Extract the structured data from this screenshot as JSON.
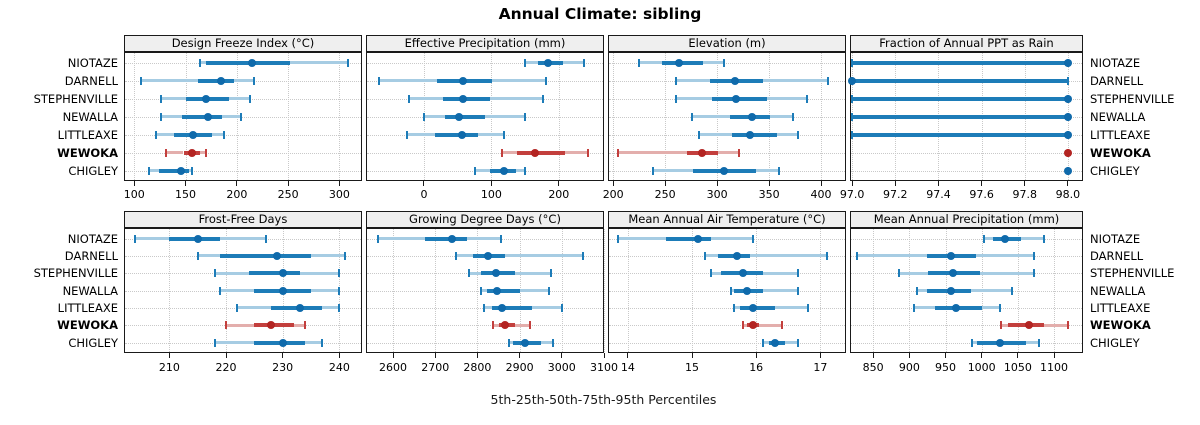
{
  "title": "Annual Climate: sibling",
  "axis_title": "5th-25th-50th-75th-95th Percentiles",
  "sites": [
    "NIOTAZE",
    "DARNELL",
    "STEPHENVILLE",
    "NEWALLA",
    "LITTLEAXE",
    "WEWOKA",
    "CHIGLEY"
  ],
  "highlight_site": "WEWOKA",
  "percentile_levels": [
    "5th",
    "25th",
    "50th",
    "75th",
    "95th"
  ],
  "colors": {
    "blue_dot": "#0f6aab",
    "blue_bar": "#1d7cb8",
    "blue_light": "#a6cce3",
    "red_dot": "#b32422",
    "red_bar": "#c33f3d",
    "red_light": "#e3aeac",
    "grid": "#c9c9c9",
    "border": "#1a1a1a",
    "header_bg": "#efefef"
  },
  "chart_data": [
    {
      "type": "dot-errorbar",
      "row": 0,
      "col": 0,
      "title": "Design Freeze Index (°C)",
      "xlim": [
        90,
        322
      ],
      "ticks": [
        100,
        150,
        200,
        250,
        300
      ],
      "tick_labels": [
        "100",
        "150",
        "200",
        "250",
        "300"
      ],
      "grid": true,
      "legend": "none",
      "series": [
        {
          "site": "NIOTAZE",
          "values": [
            164,
            170,
            215,
            252,
            308
          ]
        },
        {
          "site": "DARNELL",
          "values": [
            107,
            162,
            185,
            197,
            217
          ]
        },
        {
          "site": "STEPHENVILLE",
          "values": [
            126,
            150,
            170,
            192,
            213
          ]
        },
        {
          "site": "NEWALLA",
          "values": [
            126,
            147,
            172,
            186,
            204
          ]
        },
        {
          "site": "LITTLEAXE",
          "values": [
            121,
            139,
            157,
            176,
            187
          ]
        },
        {
          "site": "WEWOKA",
          "values": [
            131,
            148,
            156,
            164,
            170
          ]
        },
        {
          "site": "CHIGLEY",
          "values": [
            114,
            124,
            146,
            153,
            156
          ]
        }
      ]
    },
    {
      "type": "dot-errorbar",
      "row": 0,
      "col": 1,
      "title": "Effective Precipitation (mm)",
      "xlim": [
        -86,
        267
      ],
      "ticks": [
        0,
        100,
        200
      ],
      "tick_labels": [
        "0",
        "100",
        "200"
      ],
      "grid": true,
      "legend": "none",
      "series": [
        {
          "site": "NIOTAZE",
          "values": [
            150,
            169,
            184,
            206,
            237
          ]
        },
        {
          "site": "DARNELL",
          "values": [
            -67,
            19,
            58,
            101,
            181
          ]
        },
        {
          "site": "STEPHENVILLE",
          "values": [
            -22,
            28,
            58,
            98,
            176
          ]
        },
        {
          "site": "NEWALLA",
          "values": [
            0,
            31,
            52,
            90,
            150
          ]
        },
        {
          "site": "LITTLEAXE",
          "values": [
            -25,
            16,
            56,
            80,
            119
          ]
        },
        {
          "site": "WEWOKA",
          "values": [
            116,
            138,
            164,
            209,
            243
          ]
        },
        {
          "site": "CHIGLEY",
          "values": [
            76,
            98,
            119,
            136,
            150
          ]
        }
      ]
    },
    {
      "type": "dot-errorbar",
      "row": 0,
      "col": 2,
      "title": "Elevation (m)",
      "xlim": [
        195,
        424
      ],
      "ticks": [
        200,
        250,
        300,
        350,
        400
      ],
      "tick_labels": [
        "200",
        "250",
        "300",
        "350",
        "400"
      ],
      "grid": true,
      "legend": "none",
      "series": [
        {
          "site": "NIOTAZE",
          "values": [
            225,
            247,
            263,
            286,
            307
          ]
        },
        {
          "site": "DARNELL",
          "values": [
            260,
            293,
            317,
            344,
            407
          ]
        },
        {
          "site": "STEPHENVILLE",
          "values": [
            260,
            295,
            318,
            348,
            386
          ]
        },
        {
          "site": "NEWALLA",
          "values": [
            276,
            312,
            334,
            351,
            373
          ]
        },
        {
          "site": "LITTLEAXE",
          "values": [
            283,
            314,
            332,
            358,
            378
          ]
        },
        {
          "site": "WEWOKA",
          "values": [
            205,
            271,
            285,
            301,
            321
          ]
        },
        {
          "site": "CHIGLEY",
          "values": [
            238,
            277,
            307,
            337,
            360
          ]
        }
      ]
    },
    {
      "type": "dot-errorbar",
      "row": 0,
      "col": 3,
      "title": "Fraction of Annual PPT as Rain",
      "xlim": [
        96.99,
        98.07
      ],
      "ticks": [
        97.0,
        97.2,
        97.4,
        97.6,
        97.8,
        98.0
      ],
      "tick_labels": [
        "97.0",
        "97.2",
        "97.4",
        "97.6",
        "97.8",
        "98.0"
      ],
      "grid": true,
      "legend": "none",
      "series": [
        {
          "site": "NIOTAZE",
          "values": [
            97.0,
            97.0,
            98.0,
            98.0,
            98.0
          ]
        },
        {
          "site": "DARNELL",
          "values": [
            97.0,
            97.0,
            97.0,
            98.0,
            98.0
          ]
        },
        {
          "site": "STEPHENVILLE",
          "values": [
            97.0,
            97.0,
            98.0,
            98.0,
            98.0
          ]
        },
        {
          "site": "NEWALLA",
          "values": [
            97.0,
            97.0,
            98.0,
            98.0,
            98.0
          ]
        },
        {
          "site": "LITTLEAXE",
          "values": [
            97.0,
            97.0,
            98.0,
            98.0,
            98.0
          ]
        },
        {
          "site": "WEWOKA",
          "values": [
            98.0,
            98.0,
            98.0,
            98.0,
            98.0
          ]
        },
        {
          "site": "CHIGLEY",
          "values": [
            98.0,
            98.0,
            98.0,
            98.0,
            98.0
          ]
        }
      ]
    },
    {
      "type": "dot-errorbar",
      "row": 1,
      "col": 0,
      "title": "Frost-Free Days",
      "xlim": [
        202,
        244
      ],
      "ticks": [
        210,
        220,
        230,
        240
      ],
      "tick_labels": [
        "210",
        "220",
        "230",
        "240"
      ],
      "grid": true,
      "legend": "none",
      "series": [
        {
          "site": "NIOTAZE",
          "values": [
            204,
            210,
            215,
            219,
            227
          ]
        },
        {
          "site": "DARNELL",
          "values": [
            215,
            219,
            229,
            235,
            241
          ]
        },
        {
          "site": "STEPHENVILLE",
          "values": [
            218,
            224,
            230,
            233,
            240
          ]
        },
        {
          "site": "NEWALLA",
          "values": [
            219,
            225,
            230,
            235,
            240
          ]
        },
        {
          "site": "LITTLEAXE",
          "values": [
            222,
            228,
            233,
            237,
            240
          ]
        },
        {
          "site": "WEWOKA",
          "values": [
            220,
            225,
            228,
            232,
            234
          ]
        },
        {
          "site": "CHIGLEY",
          "values": [
            218,
            225,
            230,
            234,
            237
          ]
        }
      ]
    },
    {
      "type": "dot-errorbar",
      "row": 1,
      "col": 1,
      "title": "Growing Degree Days (°C)",
      "xlim": [
        2536,
        3100
      ],
      "ticks": [
        2600,
        2700,
        2800,
        2900,
        3000,
        3100
      ],
      "tick_labels": [
        "2600",
        "2700",
        "2800",
        "2900",
        "3000",
        "3100"
      ],
      "grid": true,
      "legend": "none",
      "series": [
        {
          "site": "NIOTAZE",
          "values": [
            2565,
            2675,
            2740,
            2775,
            2855
          ]
        },
        {
          "site": "DARNELL",
          "values": [
            2750,
            2790,
            2825,
            2865,
            3050
          ]
        },
        {
          "site": "STEPHENVILLE",
          "values": [
            2780,
            2808,
            2845,
            2890,
            2975
          ]
        },
        {
          "site": "NEWALLA",
          "values": [
            2808,
            2822,
            2847,
            2900,
            2970
          ]
        },
        {
          "site": "LITTLEAXE",
          "values": [
            2815,
            2835,
            2858,
            2930,
            3000
          ]
        },
        {
          "site": "WEWOKA",
          "values": [
            2837,
            2850,
            2865,
            2890,
            2925
          ]
        },
        {
          "site": "CHIGLEY",
          "values": [
            2875,
            2885,
            2913,
            2950,
            2978
          ]
        }
      ]
    },
    {
      "type": "dot-errorbar",
      "row": 1,
      "col": 2,
      "title": "Mean Annual Air Temperature (°C)",
      "xlim": [
        13.69,
        17.4
      ],
      "ticks": [
        14,
        15,
        16,
        17
      ],
      "tick_labels": [
        "14",
        "15",
        "16",
        "17"
      ],
      "grid": true,
      "legend": "none",
      "series": [
        {
          "site": "NIOTAZE",
          "values": [
            13.85,
            14.6,
            15.1,
            15.3,
            15.95
          ]
        },
        {
          "site": "DARNELL",
          "values": [
            15.2,
            15.4,
            15.7,
            15.9,
            17.1
          ]
        },
        {
          "site": "STEPHENVILLE",
          "values": [
            15.3,
            15.45,
            15.8,
            16.1,
            16.65
          ]
        },
        {
          "site": "NEWALLA",
          "values": [
            15.6,
            15.65,
            15.85,
            16.1,
            16.65
          ]
        },
        {
          "site": "LITTLEAXE",
          "values": [
            15.65,
            15.75,
            15.95,
            16.3,
            16.8
          ]
        },
        {
          "site": "WEWOKA",
          "values": [
            15.8,
            15.85,
            15.95,
            16.05,
            16.4
          ]
        },
        {
          "site": "CHIGLEY",
          "values": [
            16.1,
            16.2,
            16.3,
            16.45,
            16.65
          ]
        }
      ]
    },
    {
      "type": "dot-errorbar",
      "row": 1,
      "col": 3,
      "title": "Mean Annual Precipitation (mm)",
      "xlim": [
        818,
        1140
      ],
      "ticks": [
        850,
        900,
        950,
        1000,
        1050,
        1100
      ],
      "tick_labels": [
        "850",
        "900",
        "950",
        "1000",
        "1050",
        "1100"
      ],
      "grid": true,
      "legend": "none",
      "series": [
        {
          "site": "NIOTAZE",
          "values": [
            1003,
            1015,
            1032,
            1054,
            1086
          ]
        },
        {
          "site": "DARNELL",
          "values": [
            828,
            925,
            957,
            992,
            1072
          ]
        },
        {
          "site": "STEPHENVILLE",
          "values": [
            886,
            926,
            961,
            997,
            1072
          ]
        },
        {
          "site": "NEWALLA",
          "values": [
            911,
            925,
            957,
            985,
            1042
          ]
        },
        {
          "site": "LITTLEAXE",
          "values": [
            906,
            935,
            964,
            1001,
            1025
          ]
        },
        {
          "site": "WEWOKA",
          "values": [
            1026,
            1036,
            1065,
            1086,
            1119
          ]
        },
        {
          "site": "CHIGLEY",
          "values": [
            986,
            993,
            1025,
            1061,
            1079
          ]
        }
      ]
    }
  ]
}
